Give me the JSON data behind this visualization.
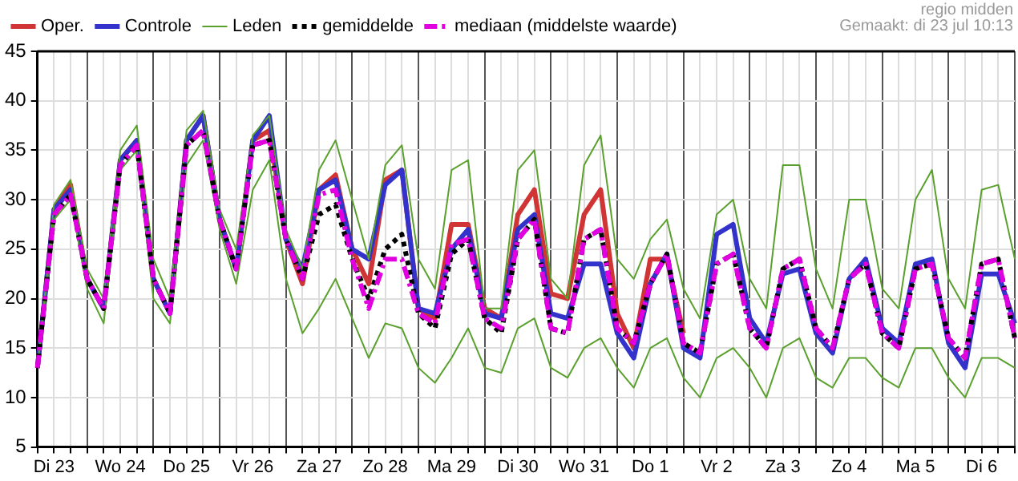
{
  "chart_data": {
    "type": "line",
    "annotations": [
      "regio midden",
      "Gemaakt: di 23 jul 10:13"
    ],
    "categories": [
      null,
      "Di 23",
      null,
      null,
      null,
      "Wo 24",
      null,
      null,
      null,
      "Do 25",
      null,
      null,
      null,
      "Vr 26",
      null,
      null,
      null,
      "Za 27",
      null,
      null,
      null,
      "Zo 28",
      null,
      null,
      null,
      "Ma 29",
      null,
      null,
      null,
      "Di 30",
      null,
      null,
      null,
      "Wo 31",
      null,
      null,
      null,
      "Do 1",
      null,
      null,
      null,
      "Vr 2",
      null,
      null,
      null,
      "Za 3",
      null,
      null,
      null,
      "Zo 4",
      null,
      null,
      null,
      "Ma 5",
      null,
      null,
      null,
      "Di 6",
      null,
      null
    ],
    "ylim": [
      5,
      45
    ],
    "yticks": [
      5,
      10,
      15,
      20,
      25,
      30,
      35,
      40,
      45
    ],
    "grid": true,
    "legend": "top",
    "marker": "none",
    "series": [
      {
        "name": "Oper.",
        "color": "#d03434",
        "line_style": "solid",
        "values": [
          13,
          29,
          31.5,
          22,
          19,
          34,
          36,
          22,
          18.5,
          36,
          38.5,
          28,
          23,
          36,
          37,
          26,
          21.5,
          31,
          32.5,
          25,
          21.5,
          32,
          33,
          19,
          18,
          27.5,
          27.5,
          19,
          18,
          28.5,
          31,
          20.5,
          20,
          28.5,
          31,
          18.5,
          15,
          24,
          24,
          16.5,
          null,
          null,
          null,
          null,
          null,
          null,
          null,
          null,
          null,
          null,
          null,
          null,
          null,
          null,
          null,
          null,
          null,
          null,
          null,
          null
        ]
      },
      {
        "name": "Controle",
        "color": "#3333cc",
        "line_style": "solid",
        "values": [
          13,
          29,
          31,
          22,
          19,
          34,
          36,
          22,
          18.5,
          36,
          38.5,
          28,
          23,
          36,
          38.5,
          26,
          23,
          31,
          32,
          25,
          24,
          31.5,
          33,
          19,
          18.5,
          25,
          27,
          18.5,
          18,
          27,
          28.5,
          18.5,
          18,
          23.5,
          23.5,
          16.5,
          14,
          21.5,
          24.5,
          15,
          14,
          26.5,
          27.5,
          18,
          15.5,
          22.5,
          23,
          16.5,
          14.5,
          22,
          24,
          17,
          15.5,
          23.5,
          24,
          15.5,
          13,
          22.5,
          22.5,
          17.5
        ]
      },
      {
        "name": "Leden",
        "color": "#5aa02c",
        "line_style": "solid",
        "values": [
          13,
          29.5,
          32,
          23,
          20,
          35,
          37.5,
          24,
          20,
          37,
          39,
          29,
          25,
          36.5,
          38.5,
          27,
          23,
          33,
          36,
          30,
          24,
          33.5,
          35.5,
          24,
          21,
          33,
          34,
          19,
          19,
          33,
          35,
          22,
          20,
          33.5,
          36.5,
          24,
          22,
          26,
          28,
          21,
          18,
          28.5,
          30,
          22,
          19,
          33.5,
          33.5,
          23,
          19,
          30,
          30,
          21,
          19,
          30,
          33,
          22,
          19,
          31,
          31.5,
          24
        ]
      },
      {
        "color": "#5aa02c",
        "line_style": "solid",
        "values": [
          13,
          28,
          30,
          21,
          17.5,
          33,
          35,
          20,
          17.5,
          33.5,
          36,
          27,
          21.5,
          31,
          34,
          22,
          16.5,
          19,
          22,
          18,
          14,
          17.5,
          17,
          13,
          11.5,
          14,
          17,
          13,
          12.5,
          17,
          18,
          13,
          12,
          15,
          16,
          13,
          11,
          15,
          16,
          12,
          10,
          14,
          15,
          13,
          10,
          15,
          16,
          12,
          11,
          14,
          14,
          12,
          11,
          15,
          15,
          12,
          10,
          14,
          14,
          13
        ]
      },
      {
        "name": "gemiddelde",
        "color": "#000000",
        "line_style": "dotted",
        "values": [
          13,
          28.5,
          30.5,
          22,
          19,
          33.5,
          35.5,
          22,
          18.5,
          35.5,
          37,
          28,
          23,
          35.5,
          36,
          26,
          22,
          28.5,
          29.5,
          24,
          20,
          25,
          26.5,
          18.5,
          17,
          24.5,
          26,
          18,
          16.5,
          26,
          28,
          17,
          16.5,
          26,
          27,
          17,
          15.5,
          21.5,
          24.5,
          15.5,
          14.5,
          23.5,
          24.5,
          17,
          15,
          23,
          24,
          17,
          15,
          22,
          23.5,
          16.5,
          15,
          23,
          23.5,
          16,
          14,
          23.5,
          24,
          16
        ]
      },
      {
        "name": "mediaan (middelste waarde)",
        "color": "#e000e0",
        "line_style": "dashed",
        "values": [
          13,
          28.5,
          30.5,
          22,
          19,
          33.5,
          35.5,
          22,
          18.5,
          35.5,
          37,
          28,
          23,
          35.5,
          36,
          26,
          22,
          30.5,
          31,
          24,
          19,
          24,
          24,
          18.5,
          17.5,
          25.5,
          26,
          18,
          17,
          26,
          28,
          17,
          16.5,
          26,
          27,
          17,
          15.5,
          21.5,
          24.5,
          15.5,
          14.5,
          23.5,
          24.5,
          17,
          15,
          23,
          24,
          17,
          15,
          22,
          23.5,
          16.5,
          15,
          23,
          23.5,
          16,
          14,
          23.5,
          24,
          16
        ]
      }
    ]
  }
}
